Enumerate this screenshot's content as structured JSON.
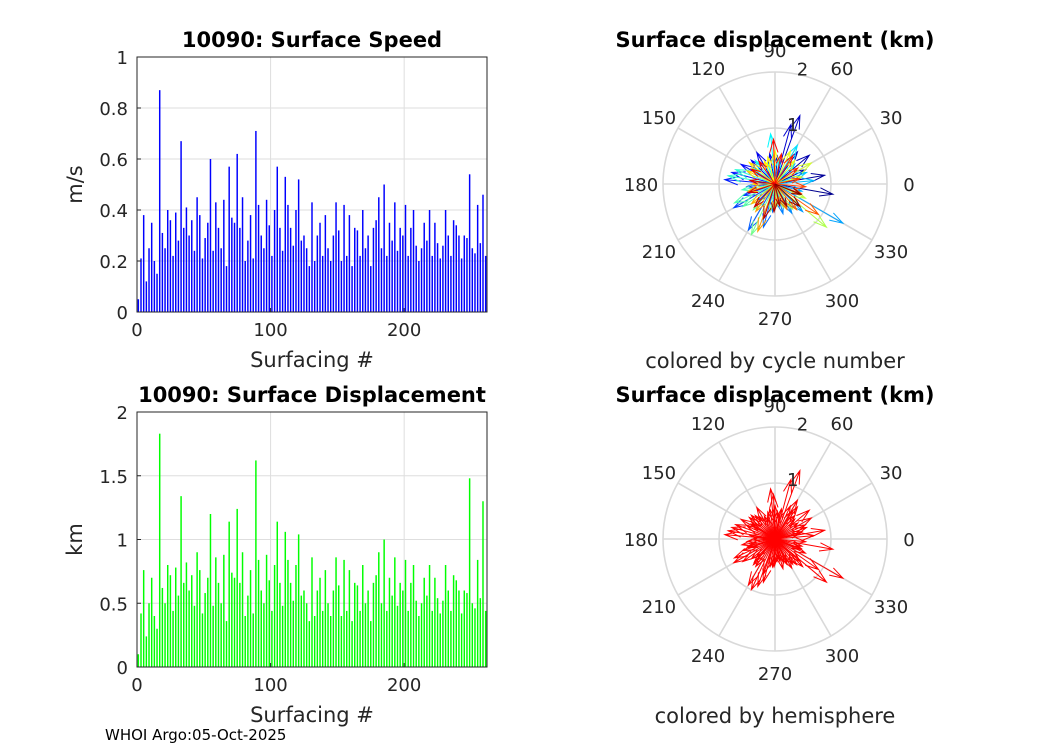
{
  "footer": "WHOI Argo:05-Oct-2025",
  "chart_data": [
    {
      "id": "speed",
      "type": "bar",
      "title": "10090: Surface Speed",
      "xlabel": "Surfacing #",
      "ylabel": "m/s",
      "xlim": [
        0,
        262
      ],
      "ylim": [
        0,
        1
      ],
      "xticks": [
        0,
        100,
        200
      ],
      "yticks": [
        0,
        0.2,
        0.4,
        0.6,
        0.8,
        1
      ],
      "ytick_labels": [
        "0",
        "0.2",
        "0.4",
        "0.6",
        "0.8",
        "1"
      ],
      "grid": true,
      "color": "#0000ff",
      "x": [
        1,
        3,
        5,
        7,
        9,
        11,
        13,
        15,
        17,
        19,
        21,
        23,
        25,
        27,
        29,
        31,
        33,
        35,
        37,
        39,
        41,
        43,
        45,
        47,
        49,
        51,
        53,
        55,
        57,
        59,
        61,
        63,
        65,
        67,
        69,
        71,
        73,
        75,
        77,
        79,
        81,
        83,
        85,
        87,
        89,
        91,
        93,
        95,
        97,
        99,
        101,
        103,
        105,
        107,
        109,
        111,
        113,
        115,
        117,
        119,
        121,
        123,
        125,
        127,
        129,
        131,
        133,
        135,
        137,
        139,
        141,
        143,
        145,
        147,
        149,
        151,
        153,
        155,
        157,
        159,
        161,
        163,
        165,
        167,
        169,
        171,
        173,
        175,
        177,
        179,
        181,
        183,
        185,
        187,
        189,
        191,
        193,
        195,
        197,
        199,
        201,
        203,
        205,
        207,
        209,
        211,
        213,
        215,
        217,
        219,
        221,
        223,
        225,
        227,
        229,
        231,
        233,
        235,
        237,
        239,
        241,
        243,
        245,
        247,
        249,
        251,
        253,
        255,
        257,
        259,
        261
      ],
      "values": [
        0.05,
        0.21,
        0.38,
        0.12,
        0.25,
        0.35,
        0.2,
        0.15,
        0.87,
        0.31,
        0.25,
        0.4,
        0.36,
        0.22,
        0.39,
        0.28,
        0.67,
        0.33,
        0.41,
        0.3,
        0.36,
        0.24,
        0.45,
        0.38,
        0.21,
        0.29,
        0.35,
        0.6,
        0.24,
        0.43,
        0.33,
        0.25,
        0.44,
        0.18,
        0.57,
        0.37,
        0.35,
        0.62,
        0.33,
        0.45,
        0.2,
        0.28,
        0.38,
        0.21,
        0.71,
        0.42,
        0.3,
        0.25,
        0.44,
        0.34,
        0.22,
        0.4,
        0.57,
        0.33,
        0.24,
        0.53,
        0.42,
        0.33,
        0.26,
        0.4,
        0.52,
        0.28,
        0.3,
        0.25,
        0.18,
        0.43,
        0.2,
        0.3,
        0.35,
        0.22,
        0.38,
        0.25,
        0.2,
        0.3,
        0.43,
        0.32,
        0.2,
        0.42,
        0.22,
        0.38,
        0.18,
        0.33,
        0.32,
        0.22,
        0.4,
        0.25,
        0.3,
        0.18,
        0.33,
        0.36,
        0.45,
        0.25,
        0.5,
        0.22,
        0.35,
        0.28,
        0.43,
        0.24,
        0.33,
        0.3,
        0.42,
        0.22,
        0.33,
        0.4,
        0.26,
        0.2,
        0.25,
        0.35,
        0.28,
        0.4,
        0.22,
        0.35,
        0.27,
        0.21,
        0.26,
        0.4,
        0.3,
        0.22,
        0.36,
        0.34,
        0.3,
        0.21,
        0.3,
        0.29,
        0.54,
        0.25,
        0.23,
        0.42,
        0.27,
        0.46,
        0.22
      ]
    },
    {
      "id": "displacement",
      "type": "bar",
      "title": "10090: Surface Displacement",
      "xlabel": "Surfacing #",
      "ylabel": "km",
      "xlim": [
        0,
        262
      ],
      "ylim": [
        0,
        2
      ],
      "xticks": [
        0,
        100,
        200
      ],
      "yticks": [
        0,
        0.5,
        1,
        1.5,
        2
      ],
      "ytick_labels": [
        "0",
        "0.5",
        "1",
        "1.5",
        "2"
      ],
      "grid": true,
      "color": "#00ff00",
      "x": [
        1,
        3,
        5,
        7,
        9,
        11,
        13,
        15,
        17,
        19,
        21,
        23,
        25,
        27,
        29,
        31,
        33,
        35,
        37,
        39,
        41,
        43,
        45,
        47,
        49,
        51,
        53,
        55,
        57,
        59,
        61,
        63,
        65,
        67,
        69,
        71,
        73,
        75,
        77,
        79,
        81,
        83,
        85,
        87,
        89,
        91,
        93,
        95,
        97,
        99,
        101,
        103,
        105,
        107,
        109,
        111,
        113,
        115,
        117,
        119,
        121,
        123,
        125,
        127,
        129,
        131,
        133,
        135,
        137,
        139,
        141,
        143,
        145,
        147,
        149,
        151,
        153,
        155,
        157,
        159,
        161,
        163,
        165,
        167,
        169,
        171,
        173,
        175,
        177,
        179,
        181,
        183,
        185,
        187,
        189,
        191,
        193,
        195,
        197,
        199,
        201,
        203,
        205,
        207,
        209,
        211,
        213,
        215,
        217,
        219,
        221,
        223,
        225,
        227,
        229,
        231,
        233,
        235,
        237,
        239,
        241,
        243,
        245,
        247,
        249,
        251,
        253,
        255,
        257,
        259,
        261
      ],
      "values": [
        0.1,
        0.42,
        0.76,
        0.24,
        0.5,
        0.7,
        0.4,
        0.3,
        1.83,
        0.62,
        0.5,
        0.8,
        0.72,
        0.44,
        0.78,
        0.56,
        1.34,
        0.66,
        0.82,
        0.6,
        0.72,
        0.48,
        0.9,
        0.76,
        0.42,
        0.58,
        0.7,
        1.2,
        0.48,
        0.86,
        0.66,
        0.5,
        0.88,
        0.36,
        1.14,
        0.74,
        0.7,
        1.24,
        0.66,
        0.9,
        0.4,
        0.56,
        0.76,
        0.42,
        1.62,
        0.84,
        0.6,
        0.5,
        0.88,
        0.68,
        0.44,
        0.8,
        1.14,
        0.66,
        0.48,
        1.06,
        0.84,
        0.66,
        0.52,
        0.8,
        1.04,
        0.56,
        0.6,
        0.5,
        0.36,
        0.86,
        0.4,
        0.6,
        0.7,
        0.44,
        0.76,
        0.5,
        0.4,
        0.6,
        0.86,
        0.64,
        0.4,
        0.84,
        0.44,
        0.76,
        0.36,
        0.66,
        0.64,
        0.44,
        0.8,
        0.5,
        0.6,
        0.36,
        0.66,
        0.72,
        0.9,
        0.5,
        1.0,
        0.44,
        0.7,
        0.56,
        0.86,
        0.48,
        0.66,
        0.6,
        0.84,
        0.44,
        0.66,
        0.8,
        0.52,
        0.4,
        0.5,
        0.7,
        0.56,
        0.8,
        0.44,
        0.7,
        0.54,
        0.42,
        0.52,
        0.8,
        0.6,
        0.44,
        0.72,
        0.68,
        0.6,
        0.42,
        0.6,
        0.58,
        1.48,
        0.5,
        0.46,
        0.84,
        0.54,
        1.3,
        0.44
      ]
    },
    {
      "id": "polar-cycle",
      "type": "polar-vector",
      "title": "Surface displacement (km)",
      "caption": "colored by cycle number",
      "r_ticks": [
        "1",
        "2"
      ],
      "r_max": 2,
      "angle_ticks": [
        "0",
        "30",
        "60",
        "90",
        "120",
        "150",
        "180",
        "210",
        "240",
        "270",
        "300",
        "330"
      ],
      "color_mode": "cycle",
      "colormap": [
        "#00008f",
        "#0000ff",
        "#0080ff",
        "#00ffff",
        "#80ff80",
        "#ffff00",
        "#ff8000",
        "#ff0000",
        "#800000"
      ],
      "angles": [
        350,
        10,
        25,
        40,
        55,
        70,
        75,
        85,
        100,
        120,
        135,
        150,
        165,
        175,
        185,
        200,
        210,
        225,
        240,
        255,
        265,
        285,
        300,
        315,
        330,
        345,
        5,
        20,
        45,
        60,
        80,
        95,
        110,
        130,
        145,
        160,
        170,
        190,
        205,
        215,
        230,
        245,
        260,
        275,
        290,
        305,
        320,
        335,
        15,
        30,
        50,
        65,
        90,
        105,
        115,
        140,
        155,
        180,
        195,
        220,
        235,
        250,
        270,
        280,
        295,
        310,
        325,
        340,
        355,
        12,
        35,
        58,
        78,
        92,
        125,
        148,
        172,
        198,
        228,
        252,
        268,
        282,
        298,
        318,
        338
      ],
      "lengths": [
        1.05,
        0.9,
        0.6,
        0.8,
        0.7,
        1.3,
        1.1,
        0.5,
        0.55,
        0.65,
        0.6,
        0.7,
        0.8,
        0.9,
        0.5,
        0.6,
        0.85,
        0.45,
        0.95,
        0.8,
        0.5,
        0.55,
        0.6,
        0.7,
        1.4,
        0.5,
        0.7,
        0.6,
        0.5,
        0.8,
        0.45,
        0.9,
        0.4,
        0.55,
        0.5,
        0.75,
        0.85,
        0.6,
        0.8,
        0.7,
        0.6,
        1.0,
        0.5,
        0.4,
        0.45,
        0.55,
        1.2,
        0.6,
        0.5,
        0.75,
        0.55,
        0.65,
        0.6,
        0.5,
        0.45,
        0.6,
        0.55,
        0.4,
        0.5,
        0.55,
        0.6,
        0.9,
        0.45,
        0.35,
        0.5,
        0.6,
        0.95,
        0.5,
        0.55,
        0.45,
        0.5,
        0.6,
        0.55,
        0.8,
        0.5,
        0.5,
        0.45,
        0.5,
        0.55,
        0.65,
        0.5,
        0.4,
        0.45,
        0.6,
        0.5
      ]
    },
    {
      "id": "polar-hemisphere",
      "type": "polar-vector",
      "title": "Surface displacement (km)",
      "caption": "colored by hemisphere",
      "r_ticks": [
        "1",
        "2"
      ],
      "r_max": 2,
      "angle_ticks": [
        "0",
        "30",
        "60",
        "90",
        "120",
        "150",
        "180",
        "210",
        "240",
        "270",
        "300",
        "330"
      ],
      "color_mode": "single",
      "color": "#ff0000",
      "angles": [
        350,
        10,
        25,
        40,
        55,
        70,
        75,
        85,
        100,
        120,
        135,
        150,
        165,
        175,
        185,
        200,
        210,
        225,
        240,
        255,
        265,
        285,
        300,
        315,
        330,
        345,
        5,
        20,
        45,
        60,
        80,
        95,
        110,
        130,
        145,
        160,
        170,
        190,
        205,
        215,
        230,
        245,
        260,
        275,
        290,
        305,
        320,
        335,
        15,
        30,
        50,
        65,
        90,
        105,
        115,
        140,
        155,
        180,
        195,
        220,
        235,
        250,
        270,
        280,
        295,
        310,
        325,
        340,
        355,
        12,
        35,
        58,
        78,
        92,
        125,
        148,
        172,
        198,
        228,
        252,
        268,
        282,
        298,
        318,
        338
      ],
      "lengths": [
        1.05,
        0.9,
        0.6,
        0.8,
        0.7,
        1.3,
        1.1,
        0.5,
        0.55,
        0.65,
        0.6,
        0.7,
        0.8,
        0.9,
        0.5,
        0.6,
        0.85,
        0.45,
        0.95,
        0.8,
        0.5,
        0.55,
        0.6,
        0.7,
        1.4,
        0.5,
        0.7,
        0.6,
        0.5,
        0.8,
        0.45,
        0.9,
        0.4,
        0.55,
        0.5,
        0.75,
        0.85,
        0.6,
        0.8,
        0.7,
        0.6,
        1.0,
        0.5,
        0.4,
        0.45,
        0.55,
        1.2,
        0.6,
        0.5,
        0.75,
        0.55,
        0.65,
        0.6,
        0.5,
        0.45,
        0.6,
        0.55,
        0.4,
        0.5,
        0.55,
        0.6,
        0.9,
        0.45,
        0.35,
        0.5,
        0.6,
        0.95,
        0.5,
        0.55,
        0.45,
        0.5,
        0.6,
        0.55,
        0.8,
        0.5,
        0.5,
        0.45,
        0.5,
        0.55,
        0.65,
        0.5,
        0.4,
        0.45,
        0.6,
        0.5
      ]
    }
  ]
}
